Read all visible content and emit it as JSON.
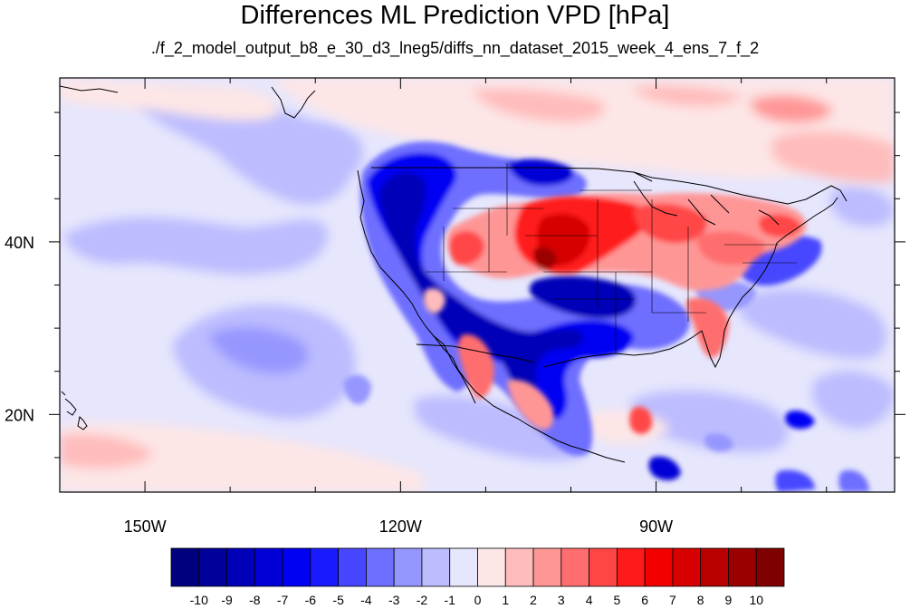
{
  "title": "Differences ML Prediction VPD [hPa]",
  "subtitle": "./f_2_model_output_b8_e_30_d3_lneg5/diffs_nn_dataset_2015_week_4_ens_7_f_2",
  "map": {
    "lon_range": [
      -160,
      -62
    ],
    "lat_range": [
      11,
      59
    ],
    "lon_labels": [
      {
        "lon": -150,
        "text": "150W"
      },
      {
        "lon": -120,
        "text": "120W"
      },
      {
        "lon": -90,
        "text": "90W"
      }
    ],
    "lat_labels": [
      {
        "lat": 40,
        "text": "40N"
      },
      {
        "lat": 20,
        "text": "20N"
      }
    ],
    "lon_minor_ticks": [
      -140,
      -130,
      -110,
      -100,
      -80,
      -70
    ],
    "lat_minor_ticks": [
      15,
      25,
      30,
      35,
      45,
      50,
      55
    ]
  },
  "colorbar": {
    "labels": [
      "-10",
      "-9",
      "-8",
      "-7",
      "-6",
      "-5",
      "-4",
      "-3",
      "-2",
      "-1",
      "0",
      "1",
      "2",
      "3",
      "4",
      "5",
      "6",
      "7",
      "8",
      "9",
      "10"
    ],
    "colors": [
      "#00007e",
      "#00009a",
      "#0000b8",
      "#0000d6",
      "#0000f2",
      "#1a1aff",
      "#4646ff",
      "#6e6eff",
      "#9696ff",
      "#bcbcff",
      "#e6e6fd",
      "#fde6e6",
      "#ffbcbc",
      "#ff9696",
      "#ff6e6e",
      "#ff4646",
      "#ff1a1a",
      "#f20000",
      "#d60000",
      "#b80000",
      "#9a0000",
      "#7e0000"
    ]
  }
}
